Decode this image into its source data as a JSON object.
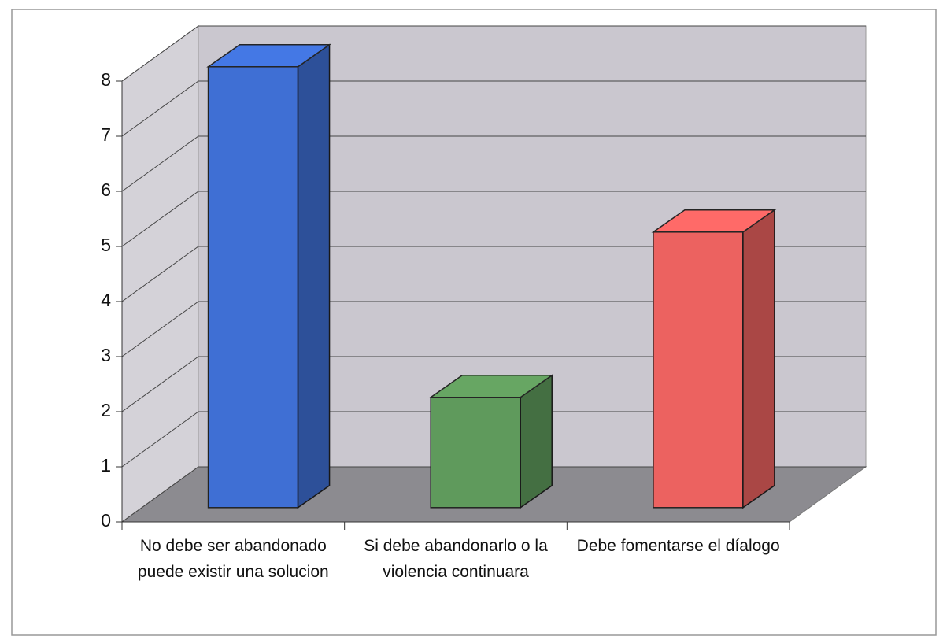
{
  "chart_data": {
    "type": "bar3d",
    "categories": [
      "No debe ser abandonado puede existir una solucion",
      "Si debe abandonarlo o la violencia continuara",
      "Debe fomentarse el díalogo"
    ],
    "values": [
      8,
      2,
      5
    ],
    "colors": [
      "#3f6fd4",
      "#5f9a5c",
      "#ec6260"
    ],
    "ylim": [
      0,
      8
    ],
    "yticks": [
      0,
      1,
      2,
      3,
      4,
      5,
      6,
      7,
      8
    ],
    "grid": true
  }
}
